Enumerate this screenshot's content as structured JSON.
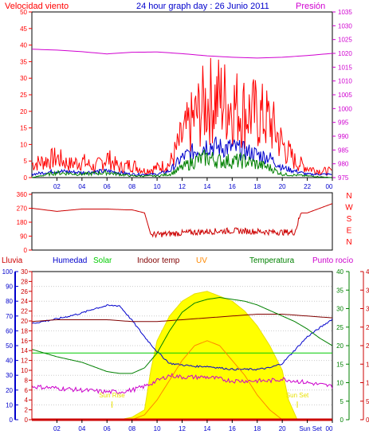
{
  "chart_data": [
    {
      "type": "line",
      "title": "24 hour graph day : 26 Junio 2011",
      "left_axis_label": "Velocidad viento",
      "right_axis_label": "Presión",
      "ylim": [
        0,
        50
      ],
      "y2lim": [
        975,
        1035
      ],
      "yticks": [
        0,
        5,
        10,
        15,
        20,
        25,
        30,
        35,
        40,
        45,
        50
      ],
      "y2ticks": [
        975,
        980,
        985,
        990,
        995,
        1000,
        1005,
        1010,
        1015,
        1020,
        1025,
        1030,
        1035
      ],
      "xticks": [
        "02",
        "04",
        "06",
        "08",
        "10",
        "12",
        "14",
        "16",
        "18",
        "20",
        "22",
        "00"
      ],
      "series": [
        {
          "name": "Presión",
          "color": "#d000d0",
          "axis": "right",
          "x": [
            0,
            2,
            4,
            6,
            8,
            10,
            12,
            14,
            16,
            18,
            20,
            22,
            24
          ],
          "values": [
            1021.5,
            1021.2,
            1020.6,
            1019.8,
            1020.4,
            1020.5,
            1019.9,
            1019.1,
            1018.6,
            1018.3,
            1018.6,
            1019.2,
            1020.0
          ]
        },
        {
          "name": "gust",
          "color": "#ff0000",
          "axis": "left",
          "x": [
            0,
            1,
            2,
            3,
            4,
            5,
            6,
            7,
            8,
            9,
            10,
            11,
            12,
            13,
            14,
            15,
            16,
            17,
            18,
            19,
            20,
            21,
            22,
            23,
            24
          ],
          "values": [
            4,
            5,
            6,
            4,
            5,
            3,
            6,
            3,
            4,
            2,
            3,
            4,
            12,
            18,
            23,
            24,
            22,
            20,
            19,
            17,
            10,
            5,
            3,
            2,
            2
          ]
        },
        {
          "name": "average",
          "color": "#0000cc",
          "axis": "left",
          "x": [
            0,
            2,
            4,
            6,
            8,
            10,
            11,
            12,
            13,
            14,
            15,
            16,
            17,
            18,
            19,
            20,
            22,
            24
          ],
          "values": [
            1,
            2,
            1.5,
            2,
            1,
            1,
            2,
            6,
            8,
            10,
            9,
            9,
            8,
            7,
            6,
            3,
            1,
            1
          ]
        },
        {
          "name": "speed",
          "color": "#008000",
          "axis": "left",
          "x": [
            0,
            2,
            4,
            6,
            8,
            10,
            11,
            12,
            13,
            14,
            15,
            16,
            17,
            18,
            19,
            20,
            22,
            24
          ],
          "values": [
            0,
            1.5,
            1,
            1.5,
            0.5,
            0.5,
            1,
            3,
            5,
            6,
            5,
            5,
            5,
            4,
            3,
            1,
            0.5,
            0
          ]
        }
      ]
    },
    {
      "type": "line",
      "yticks": [
        0,
        90,
        180,
        270,
        360
      ],
      "direction_labels": [
        "N",
        "W",
        "S",
        "E",
        "N"
      ],
      "ylim": [
        0,
        360
      ],
      "xticks": [
        "02",
        "04",
        "06",
        "08",
        "10",
        "12",
        "14",
        "16",
        "18",
        "20",
        "22",
        "00"
      ],
      "series": [
        {
          "name": "direction",
          "color": "#cc0000",
          "x": [
            0,
            2,
            4,
            6,
            7.5,
            8,
            9,
            9.5,
            10,
            12,
            14,
            16,
            18,
            20,
            21,
            21.5,
            22,
            23,
            24
          ],
          "values": [
            270,
            250,
            265,
            265,
            260,
            260,
            240,
            100,
            100,
            110,
            120,
            125,
            120,
            115,
            115,
            240,
            240,
            270,
            300
          ]
        }
      ]
    },
    {
      "type": "line",
      "legend": [
        {
          "label": "Lluvia",
          "color": "#cc0000"
        },
        {
          "label": "Humedad",
          "color": "#0000cc"
        },
        {
          "label": "Solar",
          "color": "#00cc00"
        },
        {
          "label": "Indoor temp",
          "color": "#800000"
        },
        {
          "label": "UV",
          "color": "#ff8800"
        },
        {
          "label": "Temperatura",
          "color": "#008000"
        },
        {
          "label": "Punto rocío",
          "color": "#cc00cc"
        }
      ],
      "humidity_ticks": [
        0,
        10,
        20,
        30,
        40,
        50,
        60,
        70,
        80,
        90,
        100
      ],
      "rain_ticks": [
        0,
        2,
        4,
        6,
        8,
        10,
        12,
        14,
        16,
        18,
        20,
        22,
        24,
        26,
        28,
        30
      ],
      "temp_ticks": [
        0,
        5,
        10,
        15,
        20,
        25,
        30,
        35,
        40
      ],
      "xticks": [
        "02",
        "04",
        "06",
        "08",
        "10",
        "12",
        "14",
        "16",
        "18",
        "20",
        "Sun Set",
        "00"
      ],
      "sun_rise_label": "Sun Rise",
      "sun_set_label": "Sun Set",
      "sun_rise_hour": 6.4,
      "sun_set_hour": 21.2,
      "series": [
        {
          "name": "Humedad",
          "color": "#0000cc",
          "axis": "humidity",
          "x": [
            0,
            2,
            4,
            5,
            6,
            7,
            8,
            9,
            10,
            11,
            12,
            13,
            14,
            15,
            16,
            17,
            18,
            19,
            20,
            21,
            22,
            23,
            24
          ],
          "values": [
            65,
            68,
            72,
            75,
            77,
            77,
            67,
            56,
            46,
            38,
            37,
            36,
            36,
            35,
            34,
            34,
            34,
            35,
            38,
            47,
            56,
            62,
            68
          ]
        },
        {
          "name": "Solar",
          "color": "#00cc00",
          "axis": "humidity",
          "x": [
            0,
            24
          ],
          "values": [
            45,
            45
          ]
        },
        {
          "name": "Indoor temp",
          "color": "#800000",
          "axis": "temp",
          "x": [
            0,
            2,
            4,
            6,
            8,
            10,
            12,
            14,
            16,
            18,
            20,
            22,
            24
          ],
          "values": [
            26.5,
            27,
            27,
            27,
            26.5,
            26.5,
            27,
            27.5,
            28,
            28.5,
            28.5,
            28,
            27.5
          ]
        },
        {
          "name": "Temperatura",
          "color": "#008000",
          "axis": "temp",
          "x": [
            0,
            2,
            4,
            6,
            7,
            8,
            9,
            10,
            11,
            12,
            13,
            14,
            15,
            16,
            17,
            18,
            19,
            20,
            21,
            22,
            23,
            24
          ],
          "values": [
            19,
            17,
            15.5,
            13,
            12.5,
            12.5,
            14,
            18,
            24,
            29,
            31.5,
            32.5,
            33,
            32.5,
            32,
            31,
            29.5,
            28,
            26.5,
            24.5,
            22,
            20
          ]
        },
        {
          "name": "Punto rocío",
          "color": "#cc00cc",
          "axis": "temp",
          "x": [
            0,
            2,
            4,
            6,
            7,
            8,
            9,
            10,
            11,
            12,
            13,
            14,
            15,
            16,
            17,
            18,
            19,
            20,
            21,
            22,
            23,
            24
          ],
          "values": [
            9,
            8.5,
            8,
            7.5,
            7.5,
            8,
            9,
            10.5,
            12,
            11.5,
            11.5,
            11.5,
            11,
            10.5,
            10.5,
            10.5,
            10.5,
            11,
            10.5,
            10,
            9.5,
            9
          ]
        },
        {
          "name": "Solar radiation",
          "color": "#ffff00",
          "axis": "rain",
          "x": [
            6.4,
            7,
            8,
            9,
            9.5,
            10,
            11,
            12,
            13,
            14,
            15,
            16,
            17,
            18,
            19,
            20,
            20.5,
            21.2
          ],
          "values": [
            0,
            0,
            0.5,
            2,
            10,
            16,
            21,
            24,
            25.5,
            26,
            25,
            24,
            22,
            19,
            15,
            10,
            4,
            0
          ]
        },
        {
          "name": "UV",
          "color": "#ff8800",
          "axis": "rain",
          "x": [
            8,
            9,
            10,
            11,
            12,
            13,
            14,
            15,
            16,
            17,
            18,
            19,
            20
          ],
          "values": [
            0,
            1,
            4,
            8,
            12,
            15,
            16,
            15,
            12,
            9,
            5,
            2,
            0
          ]
        },
        {
          "name": "Lluvia",
          "color": "#cc0000",
          "axis": "rain",
          "x": [
            0,
            24
          ],
          "values": [
            0,
            0
          ]
        }
      ]
    }
  ]
}
